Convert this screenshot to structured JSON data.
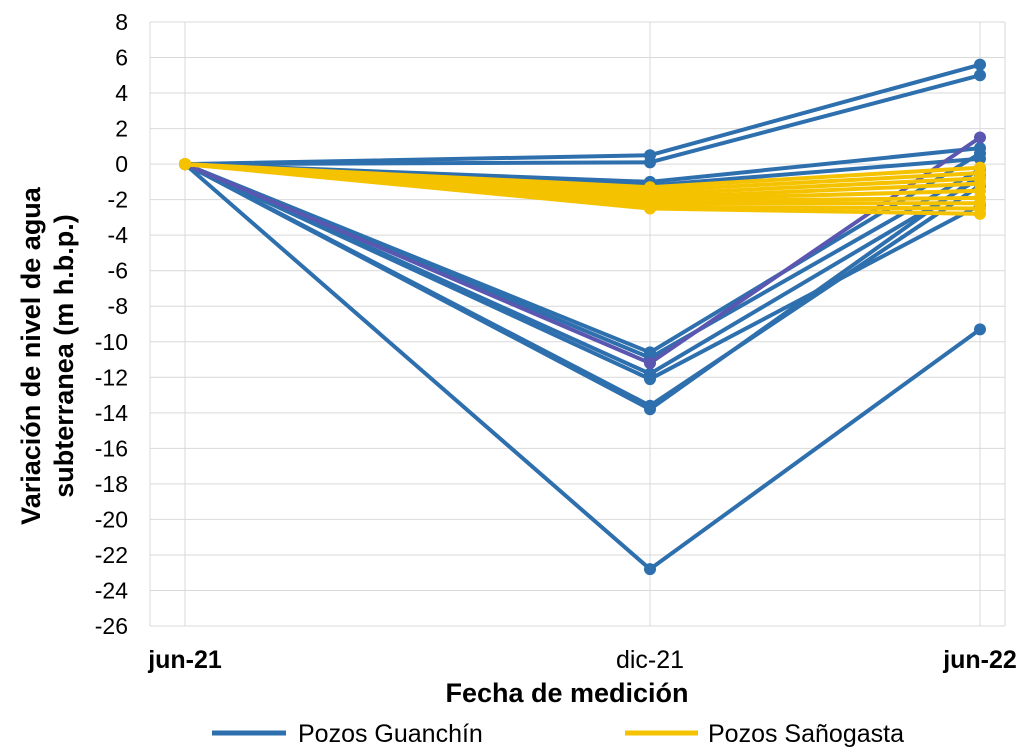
{
  "chart_data": {
    "type": "line",
    "xlabel": "Fecha de medición",
    "ylabel_line1": "Variación de nivel de agua",
    "ylabel_line2": "subterranea (m h.b.p.)",
    "categories": [
      "jun-21",
      "dic-21",
      "jun-22"
    ],
    "ylim": [
      -26,
      8
    ],
    "yticks": [
      "8",
      "6",
      "4",
      "2",
      "0",
      "-2",
      "-4",
      "-6",
      "-8",
      "-10",
      "-12",
      "-14",
      "-16",
      "-18",
      "-20",
      "-22",
      "-24",
      "-26"
    ],
    "grid": true,
    "legend_position": "bottom",
    "colors": {
      "guanchin": "#2e6fae",
      "sanogasta": "#f5c200",
      "highlight": "#5a57b0"
    },
    "series": [
      {
        "name": "Pozos Guanchín",
        "color": "#2e6fae",
        "lines": [
          [
            0,
            0.5,
            5.6
          ],
          [
            0,
            0.1,
            5.0
          ],
          [
            0,
            -1.0,
            0.9
          ],
          [
            0,
            -1.2,
            0.3
          ],
          [
            0,
            -10.6,
            0.6
          ],
          [
            0,
            -10.9,
            -0.3
          ],
          [
            0,
            -11.8,
            -0.8
          ],
          [
            0,
            -12.1,
            -2.3
          ],
          [
            0,
            -13.6,
            -1.2
          ],
          [
            0,
            -13.8,
            -0.6
          ],
          [
            0,
            -22.8,
            -9.3
          ]
        ]
      },
      {
        "name": "Pozos Sañogasta",
        "color": "#f5c200",
        "lines": [
          [
            0,
            -1.3,
            -0.2
          ],
          [
            0,
            -1.5,
            -0.5
          ],
          [
            0,
            -1.7,
            -0.8
          ],
          [
            0,
            -1.9,
            -1.1
          ],
          [
            0,
            -2.0,
            -1.5
          ],
          [
            0,
            -2.1,
            -1.9
          ],
          [
            0,
            -2.2,
            -2.2
          ],
          [
            0,
            -2.4,
            -2.5
          ],
          [
            0,
            -2.5,
            -2.8
          ]
        ]
      },
      {
        "name": "",
        "color": "#5a57b0",
        "lines": [
          [
            0,
            -11.2,
            1.5
          ]
        ]
      }
    ]
  },
  "legend": {
    "item1": "Pozos Guanchín",
    "item2": "Pozos Sañogasta"
  }
}
